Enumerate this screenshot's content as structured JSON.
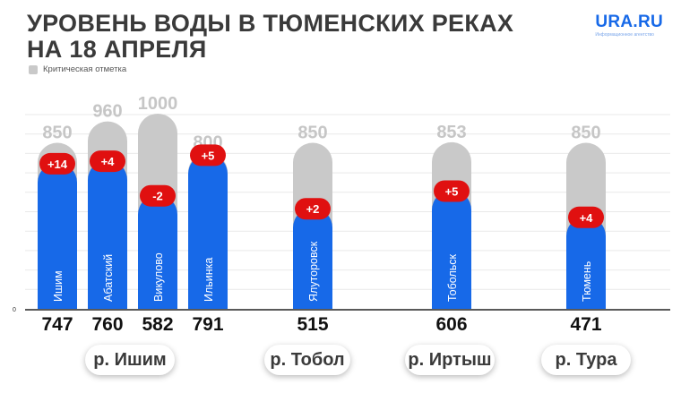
{
  "header": {
    "title_line1": "УРОВЕНЬ ВОДЫ В ТЮМЕНСКИХ РЕКАХ",
    "title_line2": "НА 18 АПРЕЛЯ",
    "legend_label": "Критическая отметка"
  },
  "logo": {
    "name": "URA.RU",
    "subtitle": "Информационное агентство"
  },
  "axis": {
    "zero_label": "0"
  },
  "colors": {
    "level": "#1769e8",
    "critical": "#c9c9c9",
    "change_badge": "#e01010"
  },
  "chart_data": {
    "type": "bar",
    "title": "УРОВЕНЬ ВОДЫ В ТЮМЕНСКИХ РЕКАХ НА 18 АПРЕЛЯ",
    "ylim": [
      0,
      1000
    ],
    "grid": true,
    "legend": {
      "entries": [
        "Критическая отметка"
      ],
      "placement": "top-left"
    },
    "categories": [
      "Ишим",
      "Абатский",
      "Викулово",
      "Ильинка",
      "Ялуторовск",
      "Тобольск",
      "Тюмень"
    ],
    "series": [
      {
        "name": "",
        "values": [
          747,
          760,
          582,
          791,
          515,
          606,
          471
        ]
      },
      {
        "name": "Критическая отметка",
        "values": [
          850,
          960,
          1000,
          800,
          850,
          853,
          850
        ]
      }
    ],
    "level_labels": [
      "747",
      "760",
      "582",
      "791",
      "515",
      "606",
      "471"
    ],
    "critical_labels": [
      "850",
      "960",
      "1000",
      "800",
      "850",
      "853",
      "850"
    ],
    "changes": [
      "+14",
      "+4",
      "-2",
      "+5",
      "+2",
      "+5",
      "+4"
    ],
    "rivers": [
      {
        "label": "р. Ишим",
        "stations": [
          0,
          1,
          2,
          3
        ]
      },
      {
        "label": "р. Тобол",
        "stations": [
          4
        ]
      },
      {
        "label": "р. Иртыш",
        "stations": [
          5
        ]
      },
      {
        "label": "р. Тура",
        "stations": [
          6
        ]
      }
    ]
  }
}
